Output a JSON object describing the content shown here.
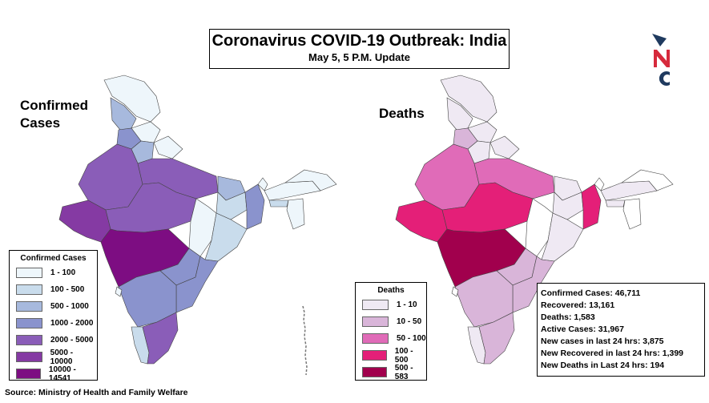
{
  "title": "Coronavirus COVID-19 Outbreak: India",
  "subtitle": "May 5, 5 P.M. Update",
  "logo": {
    "icon": "nc-logo",
    "colors": {
      "arrow": "#1f3a5f",
      "n": "#d62a3c",
      "c": "#1f3a5f"
    }
  },
  "confirmed_map": {
    "label": "Confirmed Cases",
    "legend_title": "Confirmed Cases",
    "legend": [
      {
        "label": "1 - 100",
        "color": "#eef6fb"
      },
      {
        "label": "100 - 500",
        "color": "#c9dcec"
      },
      {
        "label": "500 - 1000",
        "color": "#a7b9dd"
      },
      {
        "label": "1000 - 2000",
        "color": "#8a93cd"
      },
      {
        "label": "2000 - 5000",
        "color": "#8a5db8"
      },
      {
        "label": "5000 - 10000",
        "color": "#853aa3"
      },
      {
        "label": "10000 - 14541",
        "color": "#7d0d82"
      }
    ]
  },
  "deaths_map": {
    "label": "Deaths",
    "legend_title": "Deaths",
    "legend": [
      {
        "label": "1 - 10",
        "color": "#efe9f3"
      },
      {
        "label": "10 - 50",
        "color": "#d9b5d9"
      },
      {
        "label": "50 - 100",
        "color": "#e06bb8"
      },
      {
        "label": "100 - 500",
        "color": "#e41f78"
      },
      {
        "label": "500 - 583",
        "color": "#a1004d"
      }
    ]
  },
  "stats": [
    "Confirmed Cases: 46,711",
    "Recovered: 13,161",
    "Deaths: 1,583",
    "Active Cases: 31,967",
    "New cases in last 24 hrs: 3,875",
    "New Recovered in last 24 hrs: 1,399",
    "New Deaths in Last 24 hrs: 194"
  ],
  "source": "Source: Ministry of Health and Family Welfare"
}
